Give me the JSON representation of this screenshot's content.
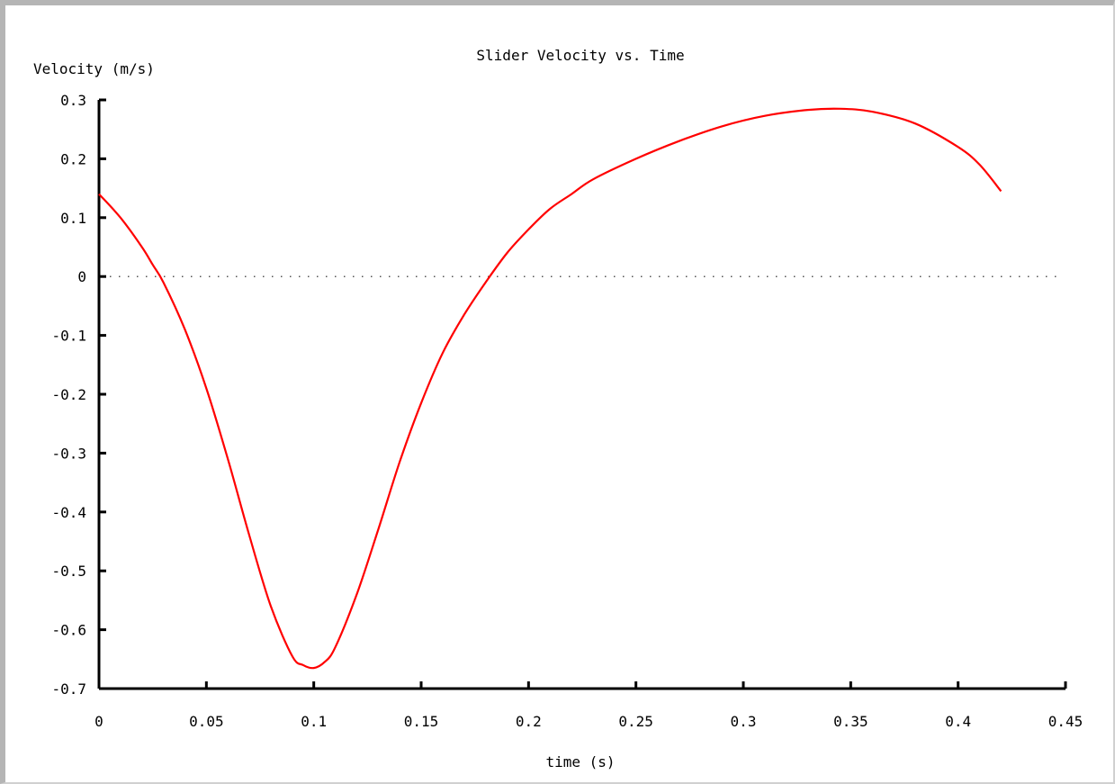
{
  "chart_data": {
    "type": "line",
    "title": "Slider Velocity vs. Time",
    "xlabel": "time (s)",
    "ylabel": "Velocity (m/s)",
    "xlim": [
      0,
      0.45
    ],
    "ylim": [
      -0.7,
      0.3
    ],
    "xticks": [
      0,
      0.05,
      0.1,
      0.15,
      0.2,
      0.25,
      0.3,
      0.35,
      0.4,
      0.45
    ],
    "xtick_labels": [
      "0",
      "0.05",
      "0.1",
      "0.15",
      "0.2",
      "0.25",
      "0.3",
      "0.35",
      "0.4",
      "0.45"
    ],
    "yticks": [
      0.3,
      0.2,
      0.1,
      0,
      -0.1,
      -0.2,
      -0.3,
      -0.4,
      -0.5,
      -0.6,
      -0.7
    ],
    "ytick_labels": [
      "0.3",
      "0.2",
      "0.1",
      "0",
      "-0.1",
      "-0.2",
      "-0.3",
      "-0.4",
      "-0.5",
      "-0.6",
      "-0.7"
    ],
    "zero_line": true,
    "grid": false,
    "series": [
      {
        "color": "#ff0000",
        "x": [
          0,
          0.01,
          0.02,
          0.025,
          0.03,
          0.04,
          0.05,
          0.06,
          0.07,
          0.08,
          0.09,
          0.095,
          0.1,
          0.105,
          0.11,
          0.12,
          0.13,
          0.14,
          0.15,
          0.16,
          0.17,
          0.18,
          0.19,
          0.2,
          0.21,
          0.22,
          0.23,
          0.25,
          0.27,
          0.29,
          0.31,
          0.33,
          0.345,
          0.36,
          0.38,
          0.4,
          0.41,
          0.42
        ],
        "y": [
          0.14,
          0.1,
          0.05,
          0.02,
          -0.01,
          -0.09,
          -0.19,
          -0.31,
          -0.44,
          -0.56,
          -0.645,
          -0.66,
          -0.665,
          -0.655,
          -0.63,
          -0.54,
          -0.43,
          -0.315,
          -0.215,
          -0.13,
          -0.065,
          -0.01,
          0.04,
          0.08,
          0.115,
          0.14,
          0.165,
          0.2,
          0.23,
          0.255,
          0.273,
          0.283,
          0.285,
          0.28,
          0.26,
          0.22,
          0.19,
          0.145
        ]
      }
    ]
  }
}
